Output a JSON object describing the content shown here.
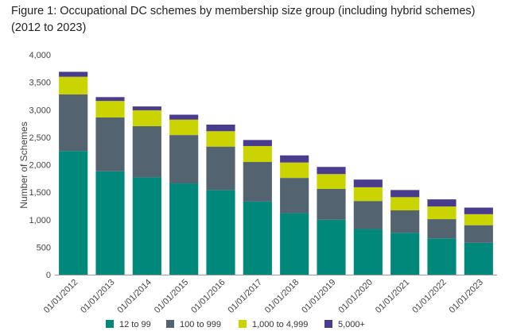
{
  "title": "Figure 1: Occupational DC schemes by membership size group (including hybrid schemes) (2012 to 2023)",
  "colors": {
    "s1": "#00897b",
    "s2": "#546370",
    "s3": "#c9d400",
    "s4": "#4a3c8c"
  },
  "chart_data": {
    "type": "bar",
    "stacked": true,
    "title": "Figure 1: Occupational DC schemes by membership size group (including hybrid schemes) (2012 to 2023)",
    "xlabel": "",
    "ylabel": "Number of Schemes",
    "ylim": [
      0,
      4000
    ],
    "yticks": [
      0,
      500,
      1000,
      1500,
      2000,
      2500,
      3000,
      3500,
      4000
    ],
    "ytick_labels": [
      "0",
      "500",
      "1,000",
      "1,500",
      "2,000",
      "2,500",
      "3,000",
      "3,500",
      "4,000"
    ],
    "categories": [
      "01/01/2012",
      "01/01/2013",
      "01/01/2014",
      "01/01/2015",
      "01/01/2016",
      "01/01/2017",
      "01/01/2018",
      "01/01/2019",
      "01/01/2020",
      "01/01/2021",
      "01/01/2022",
      "01/01/2023"
    ],
    "series": [
      {
        "name": "12 to 99",
        "values": [
          2250,
          1880,
          1770,
          1660,
          1540,
          1330,
          1120,
          1000,
          830,
          760,
          660,
          580
        ]
      },
      {
        "name": "100 to 999",
        "values": [
          1030,
          980,
          930,
          880,
          790,
          720,
          640,
          560,
          510,
          410,
          350,
          320
        ]
      },
      {
        "name": "1,000 to 4,999",
        "values": [
          320,
          300,
          290,
          280,
          280,
          290,
          280,
          270,
          250,
          240,
          230,
          200
        ]
      },
      {
        "name": "5,000+",
        "values": [
          90,
          70,
          70,
          90,
          120,
          110,
          130,
          130,
          140,
          130,
          130,
          120
        ]
      }
    ],
    "legend_position": "bottom",
    "grid": false
  }
}
